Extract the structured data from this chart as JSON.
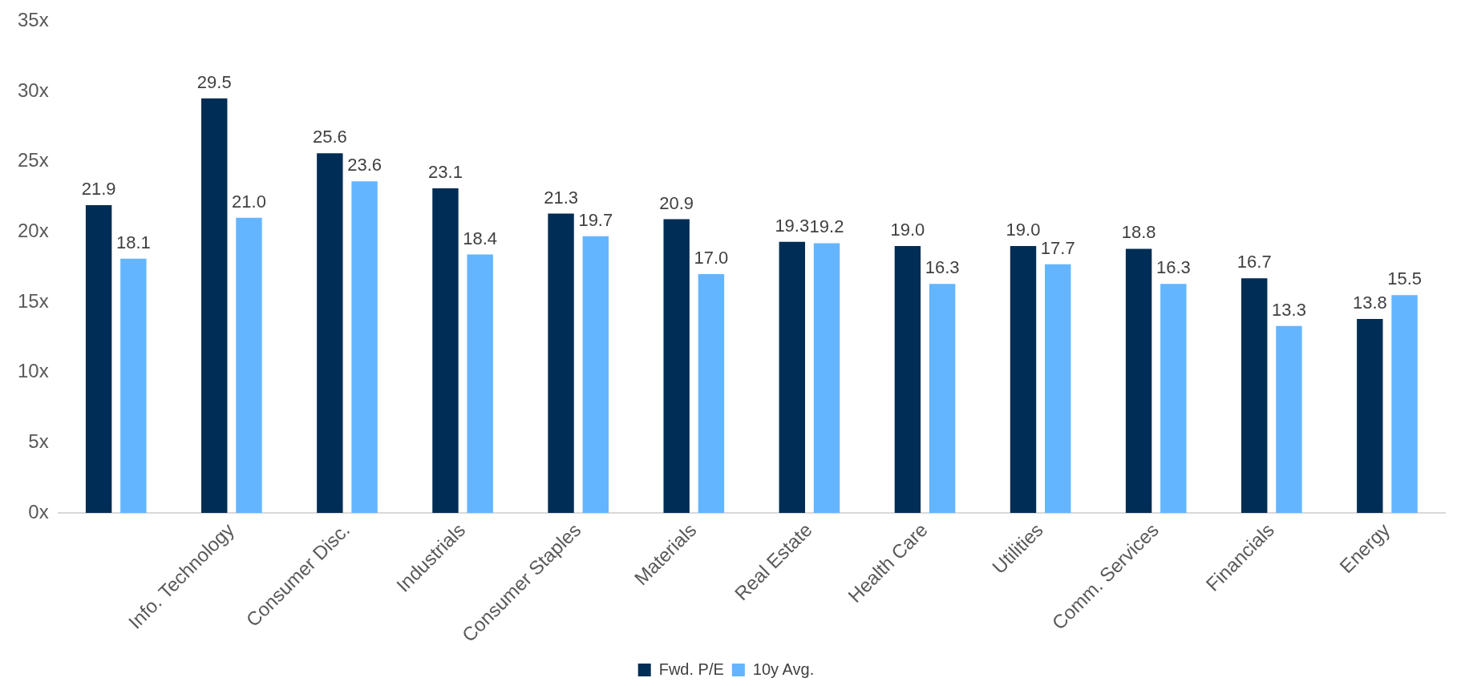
{
  "chart_data": {
    "type": "bar",
    "categories": [
      null,
      "Info. Technology",
      "Consumer Disc.",
      "Industrials",
      "Consumer Staples",
      "Materials",
      "Real Estate",
      "Health Care",
      "Utilities",
      "Comm. Services",
      "Financials",
      "Energy"
    ],
    "series": [
      {
        "name": "Fwd. P/E",
        "color": "#002d55",
        "values": [
          21.9,
          29.5,
          25.6,
          23.1,
          21.3,
          20.9,
          19.3,
          19.0,
          19.0,
          18.8,
          16.7,
          13.8
        ],
        "value_labels": [
          "21.9",
          "29.5",
          "25.6",
          "23.1",
          "21.3",
          "20.9",
          "19.3",
          "19.0",
          "19.0",
          "18.8",
          "16.7",
          "13.8"
        ]
      },
      {
        "name": "10y Avg.",
        "color": "#64b5ff",
        "values": [
          18.1,
          21.0,
          23.6,
          18.4,
          19.7,
          17.0,
          19.2,
          16.3,
          17.7,
          16.3,
          13.3,
          15.5
        ],
        "value_labels": [
          "18.1",
          "21.0",
          "23.6",
          "18.4",
          "19.7",
          "17.0",
          "19.2",
          "16.3",
          "17.7",
          "16.3",
          "13.3",
          "15.5"
        ]
      }
    ],
    "ylim": [
      0,
      35
    ],
    "yticks": [
      {
        "value": 0,
        "label": "0x"
      },
      {
        "value": 5,
        "label": "5x"
      },
      {
        "value": 10,
        "label": "10x"
      },
      {
        "value": 15,
        "label": "15x"
      },
      {
        "value": 20,
        "label": "20x"
      },
      {
        "value": 25,
        "label": "25x"
      },
      {
        "value": 30,
        "label": "30x"
      },
      {
        "value": 35,
        "label": "35x"
      }
    ],
    "grid": false,
    "legend": "bottom"
  }
}
